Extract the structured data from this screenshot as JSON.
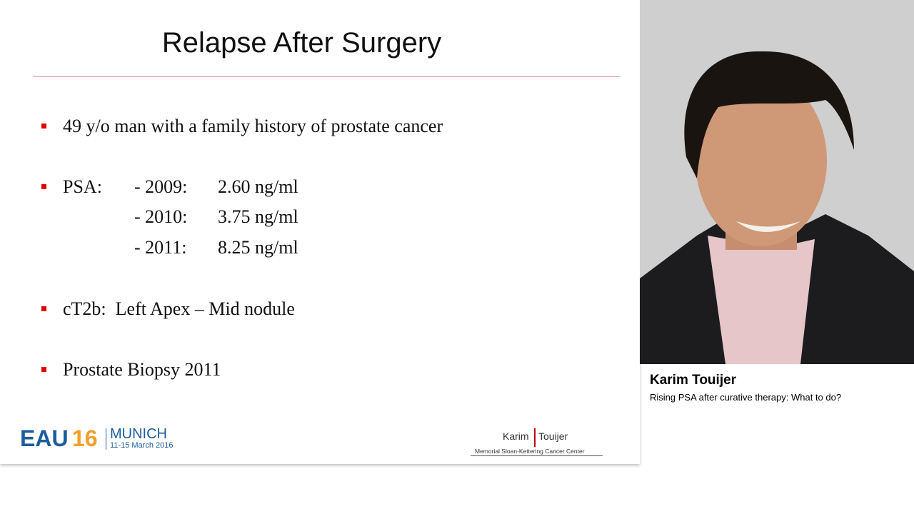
{
  "slide": {
    "title": "Relapse After Surgery",
    "bullets": [
      {
        "text": "49 y/o man with a family history of prostate cancer"
      },
      {
        "text": "PSA:",
        "rows": [
          {
            "year": "- 2009:",
            "value": "2.60 ng/ml"
          },
          {
            "year": "- 2010:",
            "value": "3.75 ng/ml"
          },
          {
            "year": "- 2011:",
            "value": "8.25 ng/ml"
          }
        ]
      },
      {
        "text": "cT2b:  Left Apex – Mid nodule"
      },
      {
        "text": "Prostate Biopsy 2011"
      }
    ],
    "footer": {
      "logo": {
        "eau": "EAU",
        "num": "16",
        "city": "MUNICH",
        "dates": "11-15 March 2016"
      },
      "presenter": {
        "first": "Karim",
        "last": "Touijer",
        "institution": "Memorial Sloan-Kettering Cancer Center"
      }
    }
  },
  "speaker": {
    "name": "Karim Touijer",
    "talk": "Rising PSA after curative therapy: What to do?"
  }
}
